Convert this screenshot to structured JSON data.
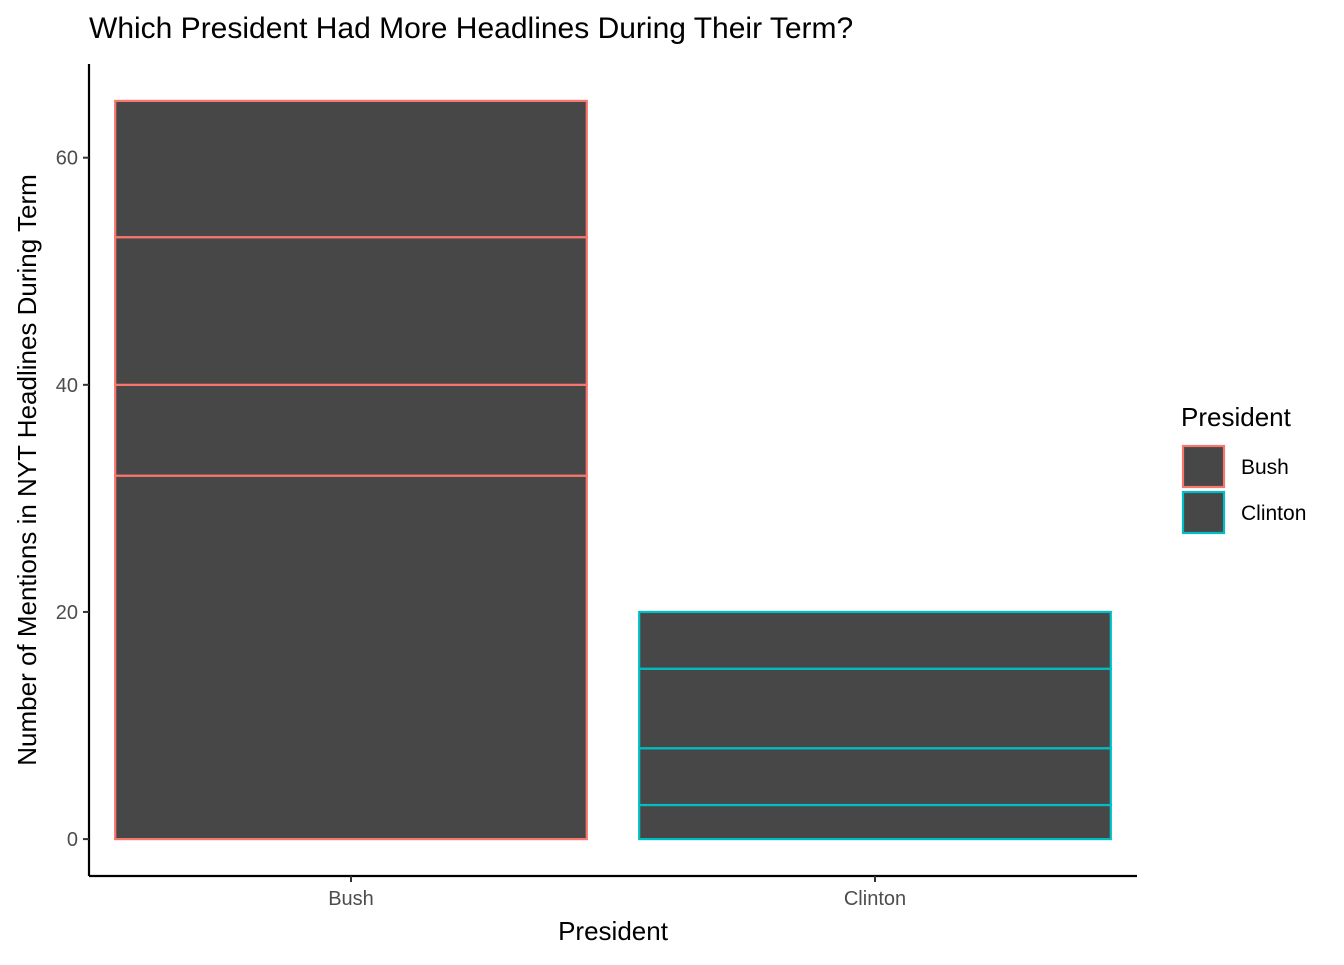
{
  "chart_data": {
    "type": "bar",
    "title": "Which President Had More Headlines During Their Term?",
    "xlabel": "President",
    "ylabel": "Number of Mentions in NYT Headlines During Term",
    "categories": [
      "Bush",
      "Clinton"
    ],
    "stacked_segments": {
      "Bush": [
        32,
        8,
        13,
        12
      ],
      "Clinton": [
        3,
        5,
        7,
        5
      ]
    },
    "totals": [
      65,
      20
    ],
    "ylim": [
      -3.25,
      68.25
    ],
    "yticks": [
      0,
      20,
      40,
      60
    ],
    "ytick_labels": [
      "0",
      "20",
      "40",
      "60"
    ],
    "grid": false,
    "fill_color": "#474747",
    "legend": {
      "title": "President",
      "placement": "right",
      "entries": [
        {
          "label": "Bush",
          "color": "#F8766D"
        },
        {
          "label": "Clinton",
          "color": "#00BFC4"
        }
      ]
    }
  }
}
